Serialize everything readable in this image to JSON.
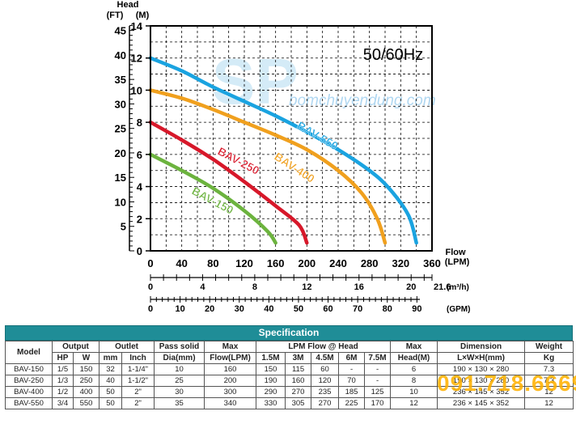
{
  "chart_data": {
    "type": "line",
    "title": "50/60Hz",
    "ylabel": "Head",
    "yunits": {
      "ft": "(FT)",
      "m": "(M)"
    },
    "xlabel": "Flow",
    "xunit": "(LPM)",
    "ylim": [
      0,
      14
    ],
    "xlim": [
      0,
      360
    ],
    "xticks": [
      0,
      40,
      80,
      120,
      160,
      200,
      240,
      280,
      320,
      360
    ],
    "yticks_m": [
      0,
      2,
      4,
      6,
      8,
      10,
      12,
      14
    ],
    "yticks_ft": [
      5,
      10,
      15,
      20,
      25,
      30,
      35,
      40,
      45
    ],
    "grid": true,
    "series": [
      {
        "name": "BAV-150",
        "color": "#6cb33e",
        "x": [
          0,
          40,
          80,
          120,
          150,
          160
        ],
        "y": [
          6,
          5,
          3.9,
          2.5,
          1.2,
          0.5
        ]
      },
      {
        "name": "BAV-250",
        "color": "#d7182a",
        "x": [
          0,
          40,
          80,
          120,
          160,
          190,
          200
        ],
        "y": [
          8,
          6.9,
          5.7,
          4.3,
          2.8,
          1.6,
          0.5
        ]
      },
      {
        "name": "BAV-400",
        "color": "#f0a01e",
        "x": [
          0,
          40,
          80,
          120,
          160,
          200,
          240,
          270,
          290,
          300
        ],
        "y": [
          10,
          9.5,
          8.8,
          8,
          7.2,
          6.3,
          5,
          3.6,
          2,
          0.5
        ]
      },
      {
        "name": "BAV-550",
        "color": "#1aa3e0",
        "x": [
          0,
          40,
          80,
          120,
          160,
          200,
          240,
          280,
          305,
          330,
          340
        ],
        "y": [
          12,
          11.2,
          10.2,
          9.3,
          8.4,
          7.4,
          6.3,
          5,
          3.9,
          2.2,
          0.5
        ]
      }
    ],
    "secondary_axes": [
      {
        "unit": "(m³/h)",
        "ticks": [
          "0",
          "4",
          "8",
          "12",
          "16",
          "20"
        ],
        "end_label": "21.6"
      },
      {
        "unit": "(GPM)",
        "ticks": [
          "0",
          "10",
          "20",
          "30",
          "40",
          "50",
          "60",
          "70",
          "80",
          "90"
        ]
      }
    ]
  },
  "watermark": {
    "main": "SP",
    "url": "bomchuyendung.com",
    "phone": "091.718.6669"
  },
  "spec": {
    "title": "Specification",
    "headers": {
      "model": "Model",
      "output": "Output",
      "outlet": "Outlet",
      "pass_solid": "Pass solid",
      "max_flow": "Max",
      "lpm_flow": "LPM Flow @  Head",
      "max_head": "Max",
      "dimension": "Dimension",
      "weight": "Weight"
    },
    "subheaders": [
      "HP",
      "W",
      "mm",
      "Inch",
      "Dia(mm)",
      "Flow(LPM)",
      "1.5M",
      "3M",
      "4.5M",
      "6M",
      "7.5M",
      "Head(M)",
      "L×W×H(mm)",
      "Kg"
    ],
    "rows": [
      [
        "BAV-150",
        "1/5",
        "150",
        "32",
        "1-1/4\"",
        "10",
        "160",
        "150",
        "115",
        "60",
        "-",
        "-",
        "6",
        "190 × 130 × 280",
        "7.3"
      ],
      [
        "BAV-250",
        "1/3",
        "250",
        "40",
        "1-1/2\"",
        "25",
        "200",
        "190",
        "160",
        "120",
        "70",
        "-",
        "8",
        "190 × 130 × 280",
        "7.3"
      ],
      [
        "BAV-400",
        "1/2",
        "400",
        "50",
        "2\"",
        "30",
        "300",
        "290",
        "270",
        "235",
        "185",
        "125",
        "10",
        "236 × 145 × 352",
        "12"
      ],
      [
        "BAV-550",
        "3/4",
        "550",
        "50",
        "2\"",
        "35",
        "340",
        "330",
        "305",
        "270",
        "225",
        "170",
        "12",
        "236 × 145 × 352",
        "12"
      ]
    ]
  }
}
